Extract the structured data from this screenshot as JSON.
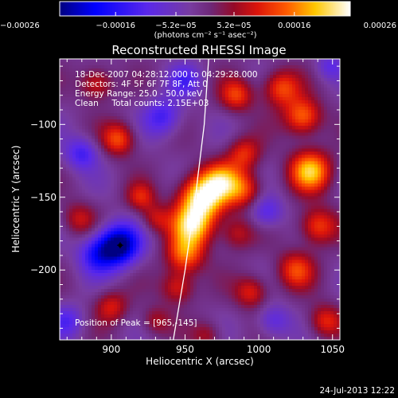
{
  "chart_data": {
    "type": "heatmap",
    "title": "Reconstructed RHESSI Image",
    "xlabel": "Heliocentric X (arcsec)",
    "ylabel": "Heliocentric Y (arcsec)",
    "xlim": [
      865,
      1055
    ],
    "ylim": [
      -248,
      -55
    ],
    "x_ticks": [
      {
        "value": 900,
        "label": "900"
      },
      {
        "value": 950,
        "label": "950"
      },
      {
        "value": 1000,
        "label": "1000"
      },
      {
        "value": 1050,
        "label": "1050"
      }
    ],
    "y_ticks": [
      {
        "value": -100,
        "label": "−100"
      },
      {
        "value": -150,
        "label": "−150"
      },
      {
        "value": -200,
        "label": "−200"
      }
    ],
    "colorbar": {
      "range": [
        -0.00026,
        0.00026
      ],
      "ticks": [
        {
          "value": -0.00026,
          "label": "−0.00026"
        },
        {
          "value": -0.00016,
          "label": "−0.00016"
        },
        {
          "value": -5.2e-05,
          "label": "−5.2e−05"
        },
        {
          "value": 5.2e-05,
          "label": "5.2e−05"
        },
        {
          "value": 0.00016,
          "label": "0.00016"
        },
        {
          "value": 0.00026,
          "label": "0.00026"
        }
      ],
      "unit_label": "(photons cm⁻² s⁻¹ asec⁻²)"
    },
    "info_lines": [
      "18-Dec-2007 04:28:12.000 to 04:29:28.000",
      "Detectors: 4F 5F 6F 7F 8F, Att 0",
      "Energy Range: 25.0 - 50.0 keV",
      "Clean     Total counts: 2.15E+03"
    ],
    "peak_text": "Position of Peak = [965,-145]",
    "peak_position": [
      965,
      -145
    ],
    "marker_position": [
      906,
      -183
    ],
    "limb_points": [
      [
        942,
        -248
      ],
      [
        950,
        -200
      ],
      [
        957,
        -150
      ],
      [
        963,
        -100
      ],
      [
        966,
        -55
      ]
    ],
    "sources": [
      {
        "x": 962,
        "y": -150,
        "v": 1.0,
        "s": 11
      },
      {
        "x": 955,
        "y": -170,
        "v": 0.8,
        "s": 10
      },
      {
        "x": 950,
        "y": -190,
        "v": 0.6,
        "s": 9
      },
      {
        "x": 945,
        "y": -212,
        "v": 0.45,
        "s": 8
      },
      {
        "x": 975,
        "y": -138,
        "v": 0.55,
        "s": 9
      },
      {
        "x": 990,
        "y": -145,
        "v": 0.5,
        "s": 9
      },
      {
        "x": 1035,
        "y": -132,
        "v": 0.8,
        "s": 10
      },
      {
        "x": 1030,
        "y": -95,
        "v": 0.65,
        "s": 9
      },
      {
        "x": 1015,
        "y": -75,
        "v": 0.55,
        "s": 9
      },
      {
        "x": 985,
        "y": -80,
        "v": 0.5,
        "s": 8
      },
      {
        "x": 990,
        "y": -120,
        "v": 0.45,
        "s": 8
      },
      {
        "x": 1040,
        "y": -170,
        "v": 0.55,
        "s": 9
      },
      {
        "x": 1025,
        "y": -200,
        "v": 0.5,
        "s": 9
      },
      {
        "x": 1045,
        "y": -235,
        "v": 0.45,
        "s": 8
      },
      {
        "x": 995,
        "y": -215,
        "v": 0.45,
        "s": 8
      },
      {
        "x": 985,
        "y": -175,
        "v": 0.35,
        "s": 8
      },
      {
        "x": 905,
        "y": -110,
        "v": 0.55,
        "s": 8
      },
      {
        "x": 890,
        "y": -72,
        "v": 0.45,
        "s": 8
      },
      {
        "x": 920,
        "y": -150,
        "v": 0.4,
        "s": 7
      },
      {
        "x": 930,
        "y": -165,
        "v": 0.35,
        "s": 7
      },
      {
        "x": 878,
        "y": -165,
        "v": 0.35,
        "s": 8
      },
      {
        "x": 900,
        "y": -225,
        "v": 0.4,
        "s": 8
      },
      {
        "x": 930,
        "y": -235,
        "v": 0.3,
        "s": 7
      },
      {
        "x": 965,
        "y": -245,
        "v": 0.3,
        "s": 7
      },
      {
        "x": 905,
        "y": -183,
        "v": -1.0,
        "s": 10
      },
      {
        "x": 890,
        "y": -190,
        "v": -0.5,
        "s": 9
      },
      {
        "x": 880,
        "y": -120,
        "v": -0.45,
        "s": 8
      },
      {
        "x": 935,
        "y": -95,
        "v": -0.45,
        "s": 9
      },
      {
        "x": 950,
        "y": -70,
        "v": -0.35,
        "s": 8
      },
      {
        "x": 1005,
        "y": -160,
        "v": -0.4,
        "s": 8
      },
      {
        "x": 1010,
        "y": -235,
        "v": -0.35,
        "s": 8
      },
      {
        "x": 1048,
        "y": -60,
        "v": -0.3,
        "s": 7
      },
      {
        "x": 870,
        "y": -235,
        "v": -0.35,
        "s": 8
      }
    ]
  },
  "footer": {
    "timestamp": "24-Jul-2013 12:22"
  }
}
